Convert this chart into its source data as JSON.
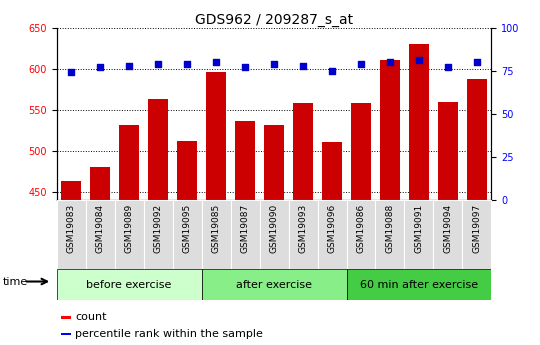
{
  "title": "GDS962 / 209287_s_at",
  "categories": [
    "GSM19083",
    "GSM19084",
    "GSM19089",
    "GSM19092",
    "GSM19095",
    "GSM19085",
    "GSM19087",
    "GSM19090",
    "GSM19093",
    "GSM19096",
    "GSM19086",
    "GSM19088",
    "GSM19091",
    "GSM19094",
    "GSM19097"
  ],
  "counts": [
    463,
    480,
    532,
    563,
    512,
    596,
    536,
    531,
    558,
    511,
    558,
    610,
    630,
    560,
    588
  ],
  "percentile_ranks": [
    74,
    77,
    78,
    79,
    79,
    80,
    77,
    79,
    78,
    75,
    79,
    80,
    81,
    77,
    80
  ],
  "groups": [
    {
      "label": "before exercise",
      "start": 0,
      "end": 5,
      "color": "#ccffcc"
    },
    {
      "label": "after exercise",
      "start": 5,
      "end": 10,
      "color": "#88ee88"
    },
    {
      "label": "60 min after exercise",
      "start": 10,
      "end": 15,
      "color": "#44cc44"
    }
  ],
  "ylim_left": [
    440,
    650
  ],
  "ylim_right": [
    0,
    100
  ],
  "yticks_left": [
    450,
    500,
    550,
    600,
    650
  ],
  "yticks_right": [
    0,
    25,
    50,
    75,
    100
  ],
  "bar_color": "#cc0000",
  "dot_color": "#0000cc",
  "title_fontsize": 10,
  "tick_fontsize": 7,
  "label_fontsize": 8,
  "group_label_fontsize": 8,
  "xtick_fontsize": 6.5,
  "legend_fontsize": 8
}
